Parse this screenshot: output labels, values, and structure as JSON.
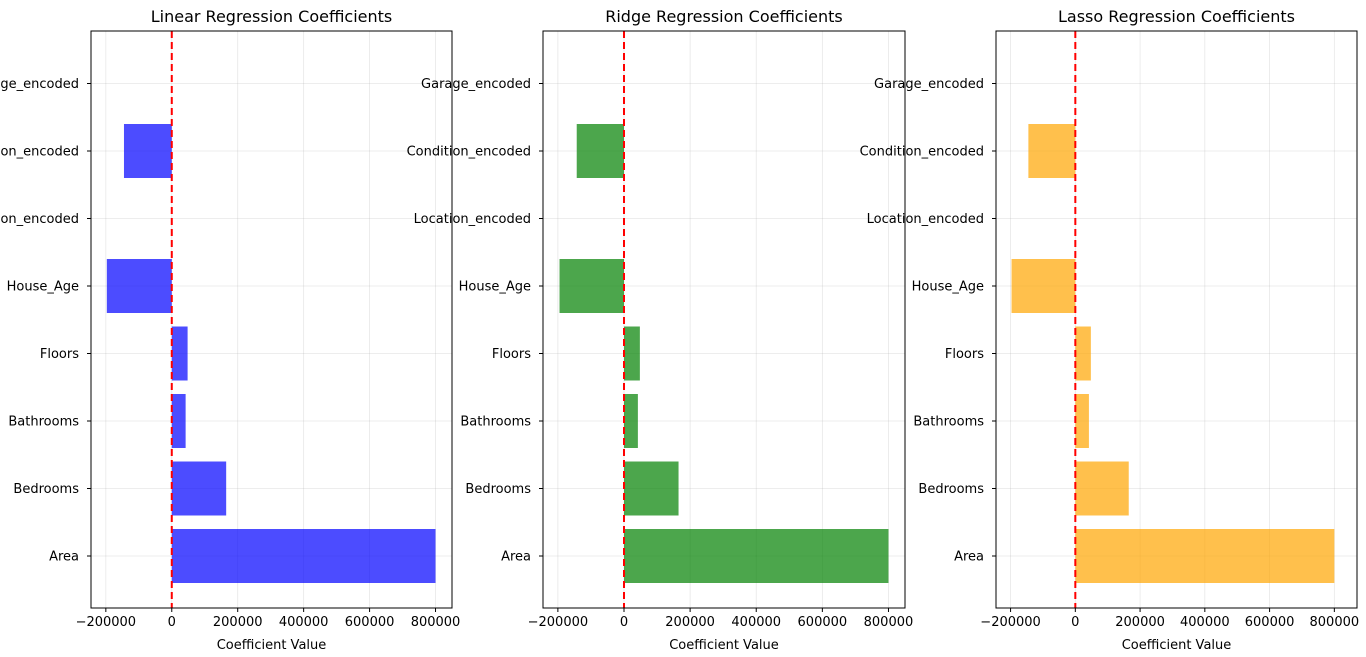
{
  "chart_data": [
    {
      "type": "bar",
      "orientation": "horizontal",
      "title": "Linear Regression Coefficients",
      "xlabel": "Coefficient Value",
      "ylabel": "",
      "categories": [
        "Area",
        "Bedrooms",
        "Bathrooms",
        "Floors",
        "House_Age",
        "Location_encoded",
        "Condition_encoded",
        "Garage_encoded"
      ],
      "values": [
        800000,
        165000,
        42000,
        48000,
        -197000,
        0,
        -145000,
        0
      ],
      "xlim": [
        -245000,
        850000
      ],
      "xticks": [
        -200000,
        0,
        200000,
        400000,
        600000,
        800000
      ],
      "xtick_labels": [
        "−200000",
        "0",
        "200000",
        "400000",
        "600000",
        "800000"
      ],
      "reference_line": 0,
      "grid": true,
      "color": "#0000ff"
    },
    {
      "type": "bar",
      "orientation": "horizontal",
      "title": "Ridge Regression Coefficients",
      "xlabel": "Coefficient Value",
      "ylabel": "",
      "categories": [
        "Area",
        "Bedrooms",
        "Bathrooms",
        "Floors",
        "House_Age",
        "Location_encoded",
        "Condition_encoded",
        "Garage_encoded"
      ],
      "values": [
        800000,
        165000,
        42000,
        48000,
        -195000,
        0,
        -143000,
        0
      ],
      "xlim": [
        -245000,
        850000
      ],
      "xticks": [
        -200000,
        0,
        200000,
        400000,
        600000,
        800000
      ],
      "xtick_labels": [
        "−200000",
        "0",
        "200000",
        "400000",
        "600000",
        "800000"
      ],
      "reference_line": 0,
      "grid": true,
      "color": "#008000"
    },
    {
      "type": "bar",
      "orientation": "horizontal",
      "title": "Lasso Regression Coefficients",
      "xlabel": "Coefficient Value",
      "ylabel": "",
      "categories": [
        "Area",
        "Bedrooms",
        "Bathrooms",
        "Floors",
        "House_Age",
        "Location_encoded",
        "Condition_encoded",
        "Garage_encoded"
      ],
      "values": [
        800000,
        165000,
        42000,
        48000,
        -197000,
        0,
        -145000,
        0
      ],
      "xlim": [
        -245000,
        870000
      ],
      "xticks": [
        -200000,
        0,
        200000,
        400000,
        600000,
        800000
      ],
      "xtick_labels": [
        "−200000",
        "0",
        "200000",
        "400000",
        "600000",
        "800000"
      ],
      "reference_line": 0,
      "grid": true,
      "color": "#ffa500"
    }
  ]
}
